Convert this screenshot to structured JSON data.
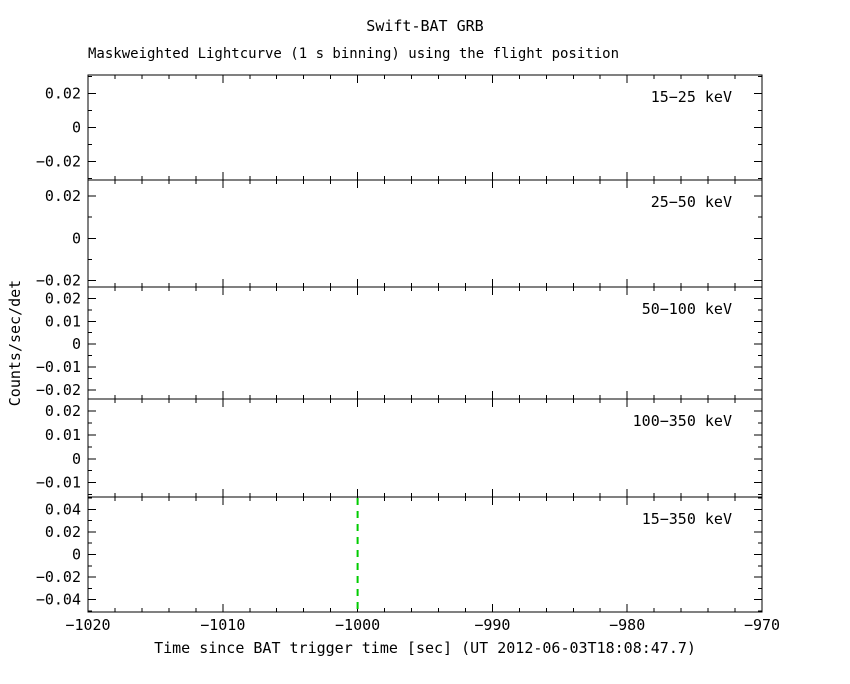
{
  "title": "Swift-BAT GRB",
  "subtitle": "Maskweighted Lightcurve (1 s binning) using the flight position",
  "xlabel": "Time since BAT trigger time [sec] (UT 2012-06-03T18:08:47.7)",
  "ylabel": "Counts/sec/det",
  "chart_data": {
    "type": "line",
    "title": "Swift-BAT GRB",
    "subtitle": "Maskweighted Lightcurve (1 s binning) using the flight position",
    "xlabel": "Time since BAT trigger time [sec] (UT 2012-06-03T18:08:47.7)",
    "ylabel": "Counts/sec/det",
    "background": "#ffffff",
    "axis_color": "#000000",
    "x_range": [
      -1020,
      -970
    ],
    "x_major_ticks": [
      -1020,
      -1010,
      -1000,
      -990,
      -980,
      -970
    ],
    "x_minor_step": 2,
    "grid": false,
    "legend": "per-panel label, top-right inside panel",
    "trigger_marker": {
      "x": -1000,
      "color": "#00cc00",
      "style": "dashed",
      "panel_label": "15-350 keV"
    },
    "panels": [
      {
        "label": "15-25 keV",
        "color": "#000000",
        "ylim": [
          -0.031,
          0.031
        ],
        "y_major_ticks": [
          0.02,
          0,
          -0.02
        ],
        "y_minor_step": 0.01,
        "series": []
      },
      {
        "label": "25-50 keV",
        "color": "#dd0000",
        "ylim": [
          -0.023,
          0.0275
        ],
        "y_major_ticks": [
          0.02,
          0,
          -0.02
        ],
        "y_minor_step": 0.01,
        "series": []
      },
      {
        "label": "50-100 keV",
        "color": "#00cc00",
        "ylim": [
          -0.024,
          0.025
        ],
        "y_major_ticks": [
          0.02,
          0.01,
          0,
          -0.01,
          -0.02
        ],
        "y_minor_step": 0.005,
        "series": []
      },
      {
        "label": "100-350 keV",
        "color": "#0000cc",
        "ylim": [
          -0.016,
          0.025
        ],
        "y_major_ticks": [
          0.02,
          0.01,
          0,
          -0.01
        ],
        "y_minor_step": 0.005,
        "series": []
      },
      {
        "label": "15-350 keV",
        "color": "#cc00cc",
        "ylim": [
          -0.051,
          0.051
        ],
        "y_major_ticks": [
          0.04,
          0.02,
          0,
          -0.02,
          -0.04
        ],
        "y_minor_step": 0.01,
        "series": []
      }
    ],
    "note": "No counts data plotted in the displayed pre-trigger time window; panels are empty except the dashed trigger-time marker at x = -1000 in the bottom panel."
  }
}
